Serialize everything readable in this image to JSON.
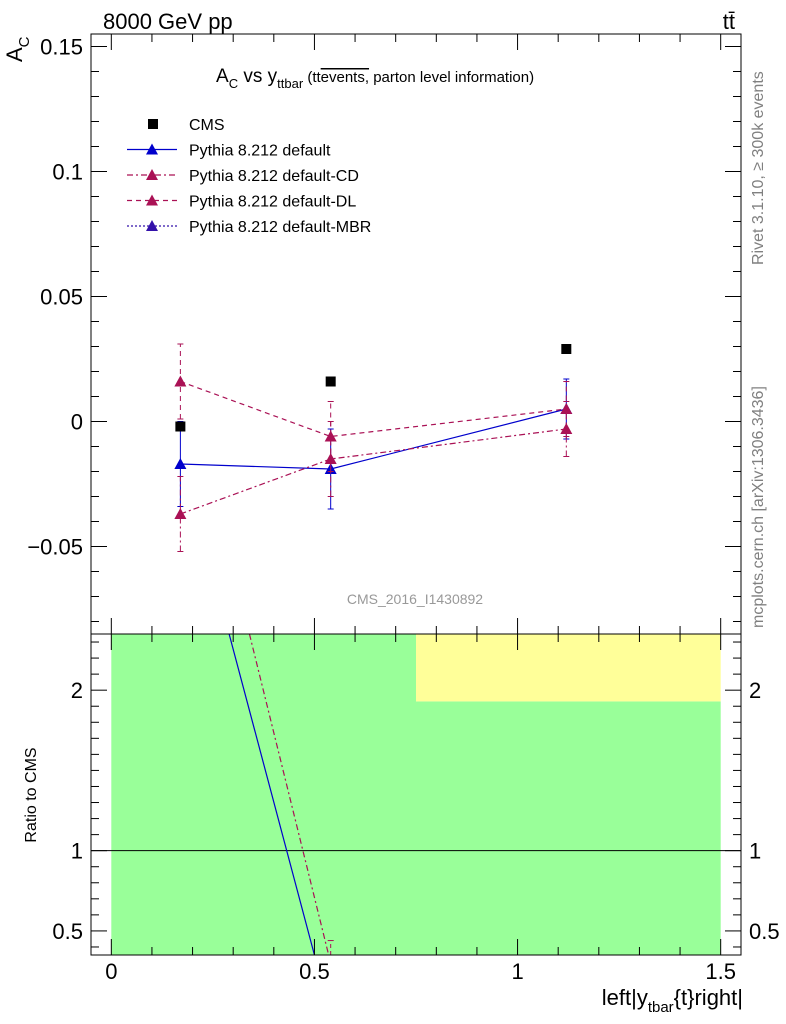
{
  "header": {
    "energy_label": "8000 GeV pp",
    "process_label": "tt̄"
  },
  "side_labels": {
    "rivet": "Rivet 3.1.10, ≥ 300k events",
    "mcplots": "mcplots.cern.ch [arXiv:1306.3436]"
  },
  "watermark": "CMS_2016_I1430892",
  "chart_data": [
    {
      "type": "line",
      "title_parts": {
        "main": "A",
        "main_sub": "C",
        "vs": " vs y",
        "vs_sub": "ttbar",
        "paren_open": " (tt",
        "paren_over": "events,",
        "paren_rest": " parton level information)"
      },
      "ylabel": "A",
      "ylabel_sub": "C",
      "xlim": [
        -0.05,
        1.55
      ],
      "ylim": [
        -0.085,
        0.155
      ],
      "yticks": [
        -0.05,
        0,
        0.05,
        0.1,
        0.15
      ],
      "ytick_labels": [
        "−0.05",
        "0",
        "0.05",
        "0.1",
        "0.15"
      ],
      "legend": [
        {
          "label": "CMS",
          "color": "#000000",
          "style": "square"
        },
        {
          "label": "Pythia 8.212 default",
          "color": "#0000cc",
          "style": "solid"
        },
        {
          "label": "Pythia 8.212 default-CD",
          "color": "#aa1155",
          "style": "dashdot"
        },
        {
          "label": "Pythia 8.212 default-DL",
          "color": "#aa1155",
          "style": "dashed"
        },
        {
          "label": "Pythia 8.212 default-MBR",
          "color": "#3311aa",
          "style": "dotted"
        }
      ],
      "cms": {
        "x": [
          0.17,
          0.54,
          1.12
        ],
        "y": [
          -0.002,
          0.016,
          0.029
        ]
      },
      "series": [
        {
          "name": "Pythia 8.212 default",
          "color": "#0000cc",
          "dash": "",
          "x": [
            0.17,
            0.54,
            1.12
          ],
          "y": [
            -0.017,
            -0.019,
            0.005
          ],
          "err": [
            0.017,
            0.016,
            0.012
          ]
        },
        {
          "name": "Pythia 8.212 default-CD",
          "color": "#aa1155",
          "dash": "6,3,2,3",
          "x": [
            0.17,
            0.54,
            1.12
          ],
          "y": [
            -0.037,
            -0.015,
            -0.003
          ],
          "err": [
            0.015,
            0.015,
            0.011
          ]
        },
        {
          "name": "Pythia 8.212 default-DL",
          "color": "#aa1155",
          "dash": "5,4",
          "x": [
            0.17,
            0.54,
            1.12
          ],
          "y": [
            0.016,
            -0.006,
            0.005
          ],
          "err": [
            0.015,
            0.014,
            0.011
          ]
        }
      ]
    },
    {
      "type": "line",
      "ylabel": "Ratio to CMS",
      "xlabel": "left|y",
      "xlabel_sub": "tbar",
      "xlabel_rest": "{t}right|",
      "xlim": [
        -0.05,
        1.55
      ],
      "ylim": [
        0.35,
        2.35
      ],
      "yticks": [
        0.5,
        1,
        2
      ],
      "ytick_labels": [
        "0.5",
        "1",
        "2"
      ],
      "xticks": [
        0,
        0.5,
        1,
        1.5
      ],
      "xtick_labels": [
        "0",
        "0.5",
        "1",
        "1.5"
      ],
      "bands": [
        {
          "x0": 0,
          "x1": 0.75,
          "lo": 0.35,
          "hi": 2.35,
          "color": "#99ff99"
        },
        {
          "x0": 0.75,
          "x1": 1.5,
          "lo": 0.35,
          "hi": 1.93,
          "color": "#99ff99"
        },
        {
          "x0": 0.75,
          "x1": 1.5,
          "lo": 1.93,
          "hi": 2.35,
          "color": "#ffff99"
        }
      ],
      "ratio_lines": [
        {
          "name": "Pythia 8.212 default",
          "color": "#0000cc",
          "dash": "",
          "x": [
            0.29,
            0.5
          ],
          "y": [
            2.35,
            0.35
          ]
        },
        {
          "name": "Pythia 8.212 default-CD",
          "color": "#aa1155",
          "dash": "6,3,2,3",
          "x": [
            0.34,
            0.535
          ],
          "y": [
            2.35,
            0.35
          ]
        }
      ],
      "ratio_errbar": {
        "x": 0.54,
        "lo": 0.35,
        "hi": 0.44,
        "color": "#aa1155"
      }
    }
  ]
}
